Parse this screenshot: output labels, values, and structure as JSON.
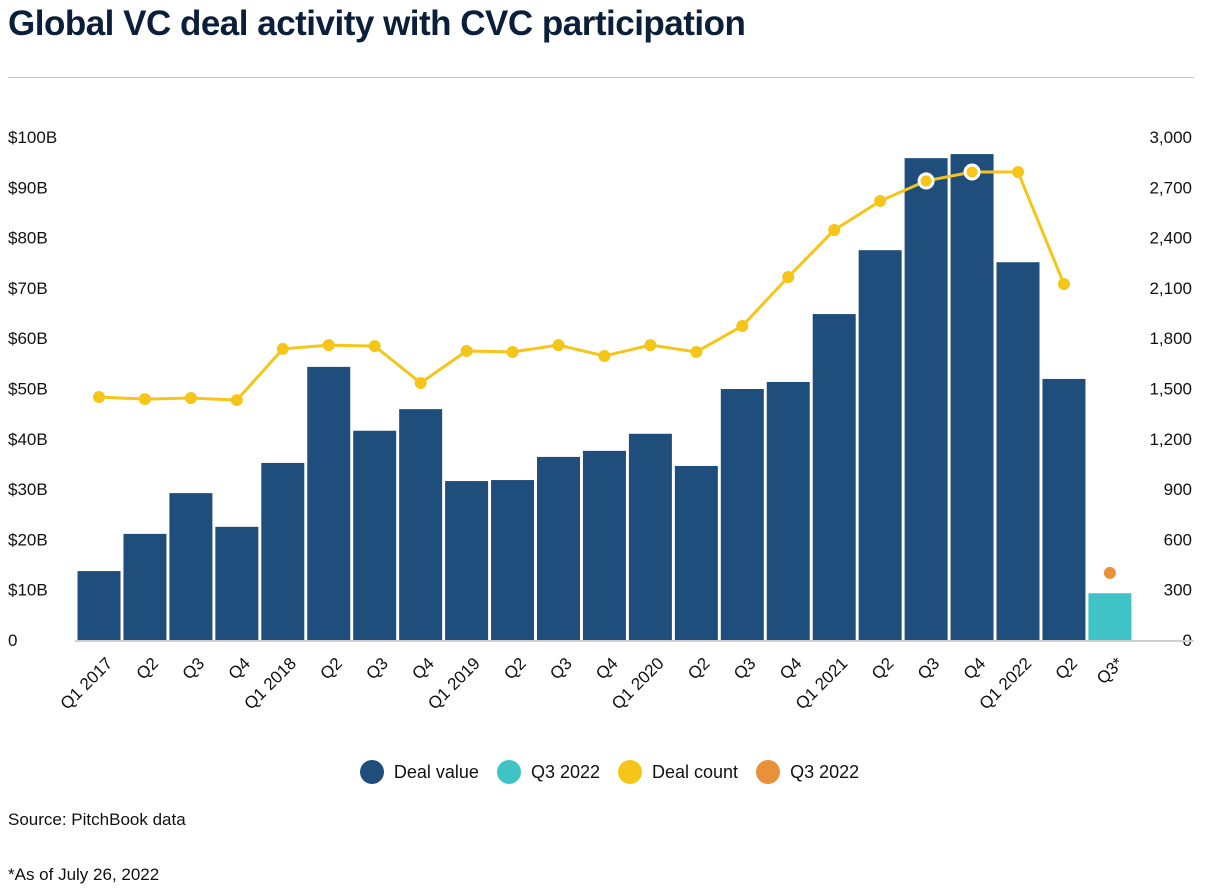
{
  "chart_data": {
    "type": "bar",
    "title": "Global VC deal activity with CVC participation",
    "categories": [
      "Q1 2017",
      "Q2",
      "Q3",
      "Q4",
      "Q1 2018",
      "Q2",
      "Q3",
      "Q4",
      "Q1 2019",
      "Q2",
      "Q3",
      "Q4",
      "Q1 2020",
      "Q2",
      "Q3",
      "Q4",
      "Q1 2021",
      "Q2",
      "Q3",
      "Q4",
      "Q1 2022",
      "Q2",
      "Q3*"
    ],
    "series": [
      {
        "name": "Deal value",
        "axis": "left",
        "type": "bar",
        "color": "#1f4e7d",
        "values": [
          13.7,
          21.1,
          29.2,
          22.5,
          35.2,
          54.3,
          41.6,
          45.9,
          31.6,
          31.8,
          36.4,
          37.6,
          41.0,
          34.6,
          49.9,
          51.3,
          64.8,
          77.5,
          95.8,
          96.6,
          75.1,
          51.9,
          null
        ]
      },
      {
        "name": "Q3 2022",
        "axis": "left",
        "type": "bar",
        "color": "#40c3c7",
        "values": [
          null,
          null,
          null,
          null,
          null,
          null,
          null,
          null,
          null,
          null,
          null,
          null,
          null,
          null,
          null,
          null,
          null,
          null,
          null,
          null,
          null,
          null,
          9.3
        ]
      },
      {
        "name": "Deal count",
        "axis": "right",
        "type": "line",
        "color": "#f5c518",
        "values": [
          1449,
          1437,
          1443,
          1431,
          1736,
          1759,
          1753,
          1533,
          1724,
          1718,
          1759,
          1694,
          1759,
          1718,
          1873,
          2165,
          2445,
          2618,
          2738,
          2791,
          2791,
          2123,
          null
        ]
      },
      {
        "name": "Q3 2022",
        "axis": "right",
        "type": "point",
        "color": "#e8903a",
        "values": [
          null,
          null,
          null,
          null,
          null,
          null,
          null,
          null,
          null,
          null,
          null,
          null,
          null,
          null,
          null,
          null,
          null,
          null,
          null,
          null,
          null,
          null,
          400
        ]
      }
    ],
    "left_axis": {
      "ylim": [
        0,
        100
      ],
      "ticks": [
        "0",
        "$10B",
        "$20B",
        "$30B",
        "$40B",
        "$50B",
        "$60B",
        "$70B",
        "$80B",
        "$90B",
        "$100B"
      ]
    },
    "right_axis": {
      "ylim": [
        0,
        3000
      ],
      "ticks": [
        "0",
        "300",
        "600",
        "900",
        "1,200",
        "1,500",
        "1,800",
        "2,100",
        "2,400",
        "2,700",
        "3,000"
      ]
    },
    "legend_position": "bottom",
    "grid": false
  },
  "legend": [
    "Deal value",
    "Q3 2022",
    "Deal count",
    "Q3 2022"
  ],
  "source": "Source: PitchBook data",
  "footnote": "*As of July 26, 2022"
}
